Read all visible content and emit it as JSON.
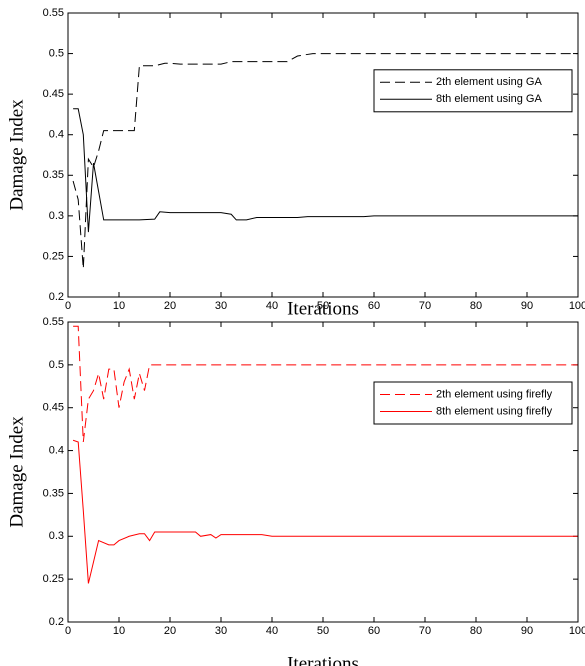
{
  "chart_data": [
    {
      "type": "line",
      "xlabel": "Iterations",
      "ylabel": "Damage Index",
      "xlim": [
        0,
        100
      ],
      "ylim": [
        0.2,
        0.55
      ],
      "xticks": [
        0,
        10,
        20,
        30,
        40,
        50,
        60,
        70,
        80,
        90,
        100
      ],
      "yticks": [
        0.2,
        0.25,
        0.3,
        0.35,
        0.4,
        0.45,
        0.5,
        0.55
      ],
      "legend": "east",
      "series": [
        {
          "name": "2th element using GA",
          "color": "#000000",
          "style": "dashed",
          "x": [
            1,
            2,
            3,
            4,
            5,
            6,
            7,
            8,
            13,
            14,
            17,
            19,
            20,
            22,
            30,
            32,
            43,
            45,
            48,
            100
          ],
          "values": [
            0.343,
            0.32,
            0.235,
            0.37,
            0.36,
            0.38,
            0.405,
            0.405,
            0.405,
            0.485,
            0.485,
            0.488,
            0.488,
            0.487,
            0.487,
            0.49,
            0.49,
            0.497,
            0.5,
            0.5
          ]
        },
        {
          "name": "8th element using GA",
          "color": "#000000",
          "style": "solid",
          "x": [
            1,
            2,
            3,
            4,
            5,
            6,
            7,
            8,
            14,
            17,
            18,
            20,
            30,
            32,
            33,
            35,
            37,
            45,
            47,
            58,
            60,
            100
          ],
          "values": [
            0.432,
            0.432,
            0.4,
            0.28,
            0.365,
            0.33,
            0.295,
            0.295,
            0.295,
            0.296,
            0.305,
            0.304,
            0.304,
            0.302,
            0.295,
            0.295,
            0.298,
            0.298,
            0.299,
            0.299,
            0.3,
            0.3
          ]
        }
      ]
    },
    {
      "type": "line",
      "xlabel": "Iterations",
      "ylabel": "Damage Index",
      "xlim": [
        0,
        100
      ],
      "ylim": [
        0.2,
        0.55
      ],
      "xticks": [
        0,
        10,
        20,
        30,
        40,
        50,
        60,
        70,
        80,
        90,
        100
      ],
      "yticks": [
        0.2,
        0.25,
        0.3,
        0.35,
        0.4,
        0.45,
        0.5,
        0.55
      ],
      "legend": "east",
      "series": [
        {
          "name": "2th element using firefly",
          "color": "#ff0000",
          "style": "dashed",
          "x": [
            1,
            2,
            3,
            4,
            5,
            6,
            7,
            8,
            9,
            10,
            11,
            12,
            13,
            14,
            15,
            16,
            20,
            100
          ],
          "values": [
            0.545,
            0.545,
            0.41,
            0.46,
            0.47,
            0.49,
            0.46,
            0.495,
            0.495,
            0.45,
            0.48,
            0.495,
            0.46,
            0.49,
            0.47,
            0.5,
            0.5,
            0.5
          ]
        },
        {
          "name": "8th element using firefly",
          "color": "#ff0000",
          "style": "solid",
          "x": [
            1,
            2,
            3,
            4,
            5,
            6,
            8,
            9,
            10,
            12,
            14,
            15,
            16,
            17,
            25,
            26,
            28,
            29,
            30,
            38,
            40,
            100
          ],
          "values": [
            0.412,
            0.41,
            0.33,
            0.245,
            0.27,
            0.295,
            0.29,
            0.29,
            0.295,
            0.3,
            0.303,
            0.303,
            0.295,
            0.305,
            0.305,
            0.3,
            0.302,
            0.298,
            0.302,
            0.302,
            0.3,
            0.3
          ]
        }
      ]
    }
  ]
}
